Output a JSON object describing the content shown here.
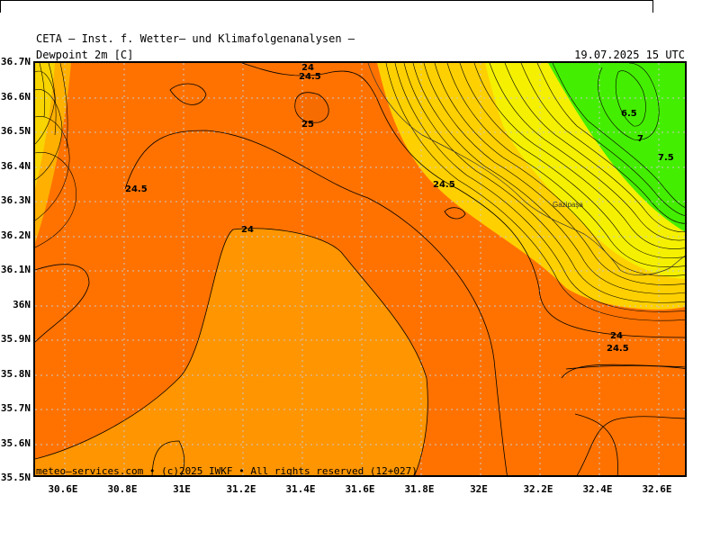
{
  "header": {
    "title": "CETA — Inst. f. Wetter— und Klimafolgenanalysen —",
    "variable": "Dewpoint 2m [C]",
    "valid_time": "19.07.2025 15 UTC"
  },
  "footer": {
    "copyright": "meteo—services.com • (c)2025 IWKF • All rights reserved (12+027)"
  },
  "axes": {
    "lat_labels": [
      "36.7N",
      "36.6N",
      "36.5N",
      "36.4N",
      "36.3N",
      "36.2N",
      "36.1N",
      "36N",
      "35.9N",
      "35.8N",
      "35.7N",
      "35.6N",
      "35.5N"
    ],
    "lon_labels": [
      "30.6E",
      "30.8E",
      "31E",
      "31.2E",
      "31.4E",
      "31.6E",
      "31.8E",
      "32E",
      "32.2E",
      "32.4E",
      "32.6E"
    ]
  },
  "contour_labels": [
    {
      "text": "24"
    },
    {
      "text": "24.5"
    },
    {
      "text": "25"
    },
    {
      "text": "24.5"
    },
    {
      "text": "24"
    },
    {
      "text": "24.5"
    },
    {
      "text": "6.5"
    },
    {
      "text": "7"
    },
    {
      "text": "7.5"
    },
    {
      "text": "24"
    },
    {
      "text": "24.5"
    }
  ],
  "place_labels": [
    "Gazipaşa"
  ],
  "colors": {
    "low_dewpoint_green": "#44ee00",
    "yellow": "#f4f000",
    "orange_main": "#ff7200",
    "orange_light": "#ff9500",
    "orange_dark": "#f06800"
  }
}
